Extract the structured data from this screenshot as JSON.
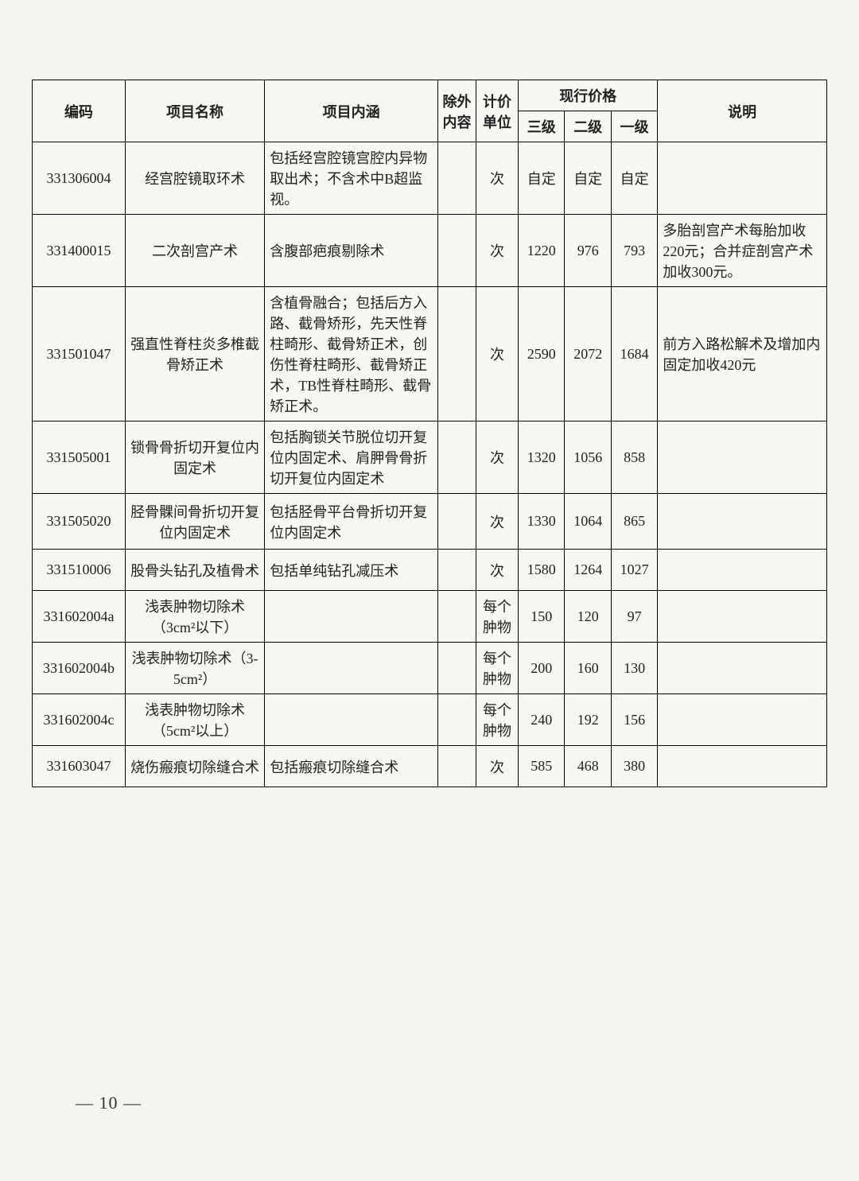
{
  "headers": {
    "code": "编码",
    "name": "项目名称",
    "content": "项目内涵",
    "exclude": "除外内容",
    "unit": "计价单位",
    "priceGroup": "现行价格",
    "p3": "三级",
    "p2": "二级",
    "p1": "一级",
    "desc": "说明"
  },
  "rows": [
    {
      "code": "331306004",
      "name": "经宫腔镜取环术",
      "content": "包括经宫腔镜宫腔内异物取出术；不含术中B超监视。",
      "exclude": "",
      "unit": "次",
      "p3": "自定",
      "p2": "自定",
      "p1": "自定",
      "desc": ""
    },
    {
      "code": "331400015",
      "name": "二次剖宫产术",
      "content": "含腹部疤痕剔除术",
      "exclude": "",
      "unit": "次",
      "p3": "1220",
      "p2": "976",
      "p1": "793",
      "desc": "多胎剖宫产术每胎加收220元；合并症剖宫产术加收300元。"
    },
    {
      "code": "331501047",
      "name": "强直性脊柱炎多椎截骨矫正术",
      "content": "含植骨融合；包括后方入路、截骨矫形，先天性脊柱畸形、截骨矫正术，创伤性脊柱畸形、截骨矫正术，TB性脊柱畸形、截骨矫正术。",
      "exclude": "",
      "unit": "次",
      "p3": "2590",
      "p2": "2072",
      "p1": "1684",
      "desc": "前方入路松解术及增加内固定加收420元"
    },
    {
      "code": "331505001",
      "name": "锁骨骨折切开复位内固定术",
      "content": "包括胸锁关节脱位切开复位内固定术、肩胛骨骨折切开复位内固定术",
      "exclude": "",
      "unit": "次",
      "p3": "1320",
      "p2": "1056",
      "p1": "858",
      "desc": ""
    },
    {
      "code": "331505020",
      "name": "胫骨髁间骨折切开复位内固定术",
      "content": "包括胫骨平台骨折切开复位内固定术",
      "exclude": "",
      "unit": "次",
      "p3": "1330",
      "p2": "1064",
      "p1": "865",
      "desc": ""
    },
    {
      "code": "331510006",
      "name": "股骨头钻孔及植骨术",
      "content": "包括单纯钻孔减压术",
      "exclude": "",
      "unit": "次",
      "p3": "1580",
      "p2": "1264",
      "p1": "1027",
      "desc": ""
    },
    {
      "code": "331602004a",
      "name": "浅表肿物切除术（3cm²以下）",
      "content": "",
      "exclude": "",
      "unit": "每个肿物",
      "p3": "150",
      "p2": "120",
      "p1": "97",
      "desc": ""
    },
    {
      "code": "331602004b",
      "name": "浅表肿物切除术（3-5cm²）",
      "content": "",
      "exclude": "",
      "unit": "每个肿物",
      "p3": "200",
      "p2": "160",
      "p1": "130",
      "desc": ""
    },
    {
      "code": "331602004c",
      "name": "浅表肿物切除术（5cm²以上）",
      "content": "",
      "exclude": "",
      "unit": "每个肿物",
      "p3": "240",
      "p2": "192",
      "p1": "156",
      "desc": ""
    },
    {
      "code": "331603047",
      "name": "烧伤瘢痕切除缝合术",
      "content": "包括瘢痕切除缝合术",
      "exclude": "",
      "unit": "次",
      "p3": "585",
      "p2": "468",
      "p1": "380",
      "desc": ""
    }
  ],
  "pageNumber": "— 10 —"
}
